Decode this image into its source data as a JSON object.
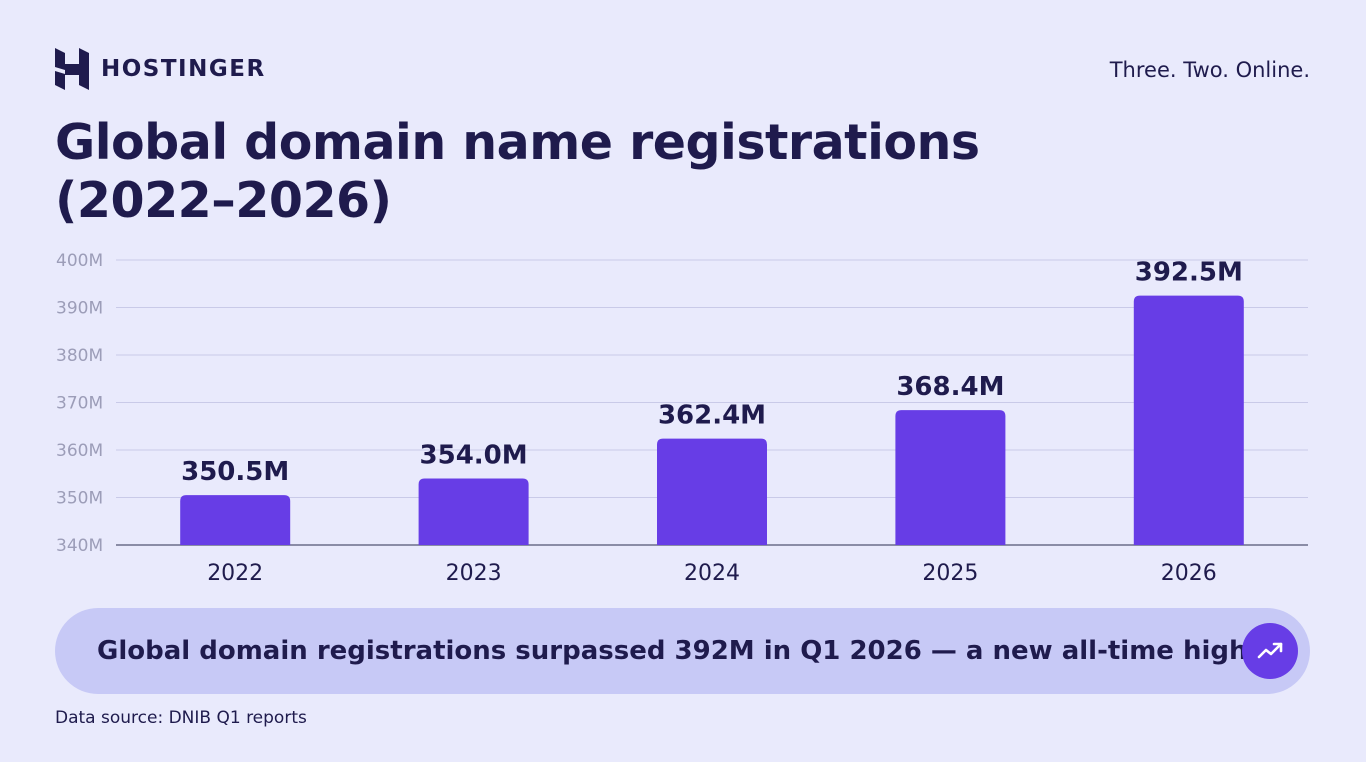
{
  "brand": {
    "name": "HOSTINGER",
    "tagline": "Three. Two. Online."
  },
  "title": {
    "line1": "Global domain name registrations",
    "line2": "(2022–2026)"
  },
  "chart_data": {
    "type": "bar",
    "categories": [
      "2022",
      "2023",
      "2024",
      "2025",
      "2026"
    ],
    "values": [
      350.5,
      354.0,
      362.4,
      368.4,
      392.5
    ],
    "data_labels": [
      "350.5M",
      "354.0M",
      "362.4M",
      "368.4M",
      "392.5M"
    ],
    "ylim": [
      340,
      400
    ],
    "yticks": [
      340,
      350,
      360,
      370,
      380,
      390,
      400
    ],
    "ytick_labels": [
      "340M",
      "350M",
      "360M",
      "370M",
      "380M",
      "390M",
      "400M"
    ],
    "xlabel": "",
    "ylabel": "",
    "grid": true,
    "colors": {
      "bar": "#673de6",
      "grid": "#c9cae8",
      "axis": "#6b6d8a",
      "tick_text": "#9c9db8"
    }
  },
  "callout": {
    "text": "Global domain registrations surpassed 392M in Q1 2026 — a new all-time high",
    "icon": "trending-up-icon"
  },
  "source": "Data source: DNIB Q1 reports"
}
